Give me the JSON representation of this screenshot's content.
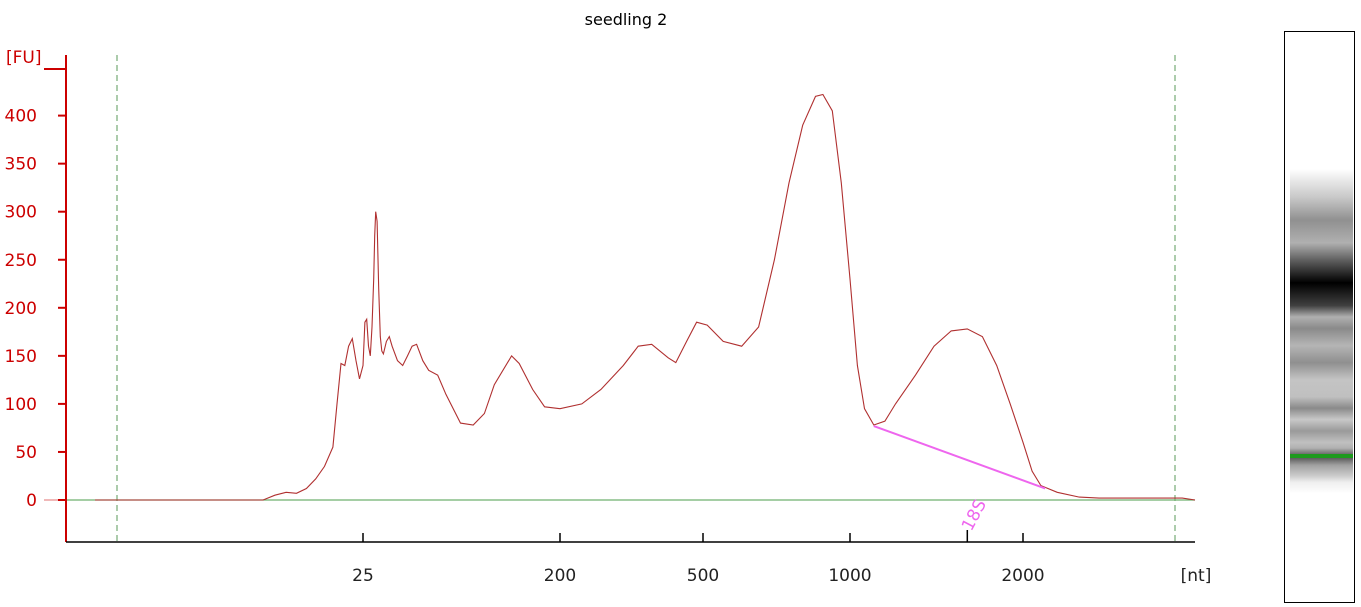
{
  "chart_data": {
    "type": "line",
    "title": "seedling 2",
    "ylabel": "[FU]",
    "xlabel": "[nt]",
    "ylim": [
      -45,
      470
    ],
    "y_ticks": [
      0,
      50,
      100,
      150,
      200,
      250,
      300,
      350,
      400
    ],
    "x_scale": "electropherogram ladder (piecewise log)",
    "x_ticks": [
      25,
      200,
      500,
      1000,
      2000
    ],
    "x_range": [
      4,
      6000
    ],
    "grid": false,
    "vertical_markers": [
      6,
      4500
    ],
    "series": [
      {
        "points": [
          [
            4,
            0
          ],
          [
            14,
            0
          ],
          [
            15,
            5
          ],
          [
            16,
            8
          ],
          [
            17,
            7
          ],
          [
            18,
            12
          ],
          [
            19,
            22
          ],
          [
            20,
            35
          ],
          [
            21,
            55
          ],
          [
            21.5,
            100
          ],
          [
            22,
            142
          ],
          [
            22.5,
            140
          ],
          [
            23,
            160
          ],
          [
            23.5,
            168
          ],
          [
            24,
            145
          ],
          [
            24.5,
            126
          ],
          [
            25,
            140
          ],
          [
            25.5,
            185
          ],
          [
            26,
            188
          ],
          [
            26.5,
            160
          ],
          [
            27,
            150
          ],
          [
            27.5,
            180
          ],
          [
            28,
            230
          ],
          [
            28.3,
            275
          ],
          [
            28.6,
            300
          ],
          [
            29,
            290
          ],
          [
            29.5,
            220
          ],
          [
            30,
            170
          ],
          [
            30.5,
            155
          ],
          [
            31,
            152
          ],
          [
            32,
            165
          ],
          [
            33,
            170
          ],
          [
            34,
            160
          ],
          [
            36,
            145
          ],
          [
            38,
            140
          ],
          [
            40,
            150
          ],
          [
            42,
            160
          ],
          [
            44,
            162
          ],
          [
            47,
            145
          ],
          [
            50,
            135
          ],
          [
            55,
            130
          ],
          [
            60,
            110
          ],
          [
            70,
            80
          ],
          [
            80,
            78
          ],
          [
            90,
            90
          ],
          [
            100,
            120
          ],
          [
            120,
            150
          ],
          [
            130,
            142
          ],
          [
            150,
            115
          ],
          [
            170,
            97
          ],
          [
            200,
            95
          ],
          [
            230,
            100
          ],
          [
            260,
            115
          ],
          [
            300,
            140
          ],
          [
            330,
            160
          ],
          [
            360,
            162
          ],
          [
            400,
            148
          ],
          [
            420,
            143
          ],
          [
            450,
            165
          ],
          [
            480,
            185
          ],
          [
            510,
            182
          ],
          [
            550,
            165
          ],
          [
            600,
            160
          ],
          [
            650,
            180
          ],
          [
            700,
            250
          ],
          [
            750,
            330
          ],
          [
            800,
            390
          ],
          [
            850,
            420
          ],
          [
            880,
            422
          ],
          [
            920,
            405
          ],
          [
            960,
            330
          ],
          [
            1000,
            230
          ],
          [
            1030,
            140
          ],
          [
            1060,
            95
          ],
          [
            1100,
            78
          ],
          [
            1150,
            82
          ],
          [
            1200,
            100
          ],
          [
            1300,
            130
          ],
          [
            1400,
            160
          ],
          [
            1500,
            176
          ],
          [
            1600,
            178
          ],
          [
            1700,
            170
          ],
          [
            1800,
            140
          ],
          [
            1900,
            100
          ],
          [
            2000,
            60
          ],
          [
            2100,
            30
          ],
          [
            2200,
            15
          ],
          [
            2400,
            8
          ],
          [
            2700,
            3
          ],
          [
            3000,
            2
          ],
          [
            5000,
            2
          ],
          [
            6000,
            0
          ]
        ]
      }
    ],
    "annotations": [
      {
        "label": "18S",
        "x": 1600
      },
      {
        "label": "",
        "type": "baseline_fit",
        "from": [
          1100,
          77
        ],
        "to": [
          2250,
          12
        ]
      }
    ],
    "colors": {
      "axis": "#cc0000",
      "trace": "#b03030",
      "baseline": "#6fb06f",
      "marker_lines": "#5a9a5a",
      "annotation": "#ee66ee"
    }
  }
}
